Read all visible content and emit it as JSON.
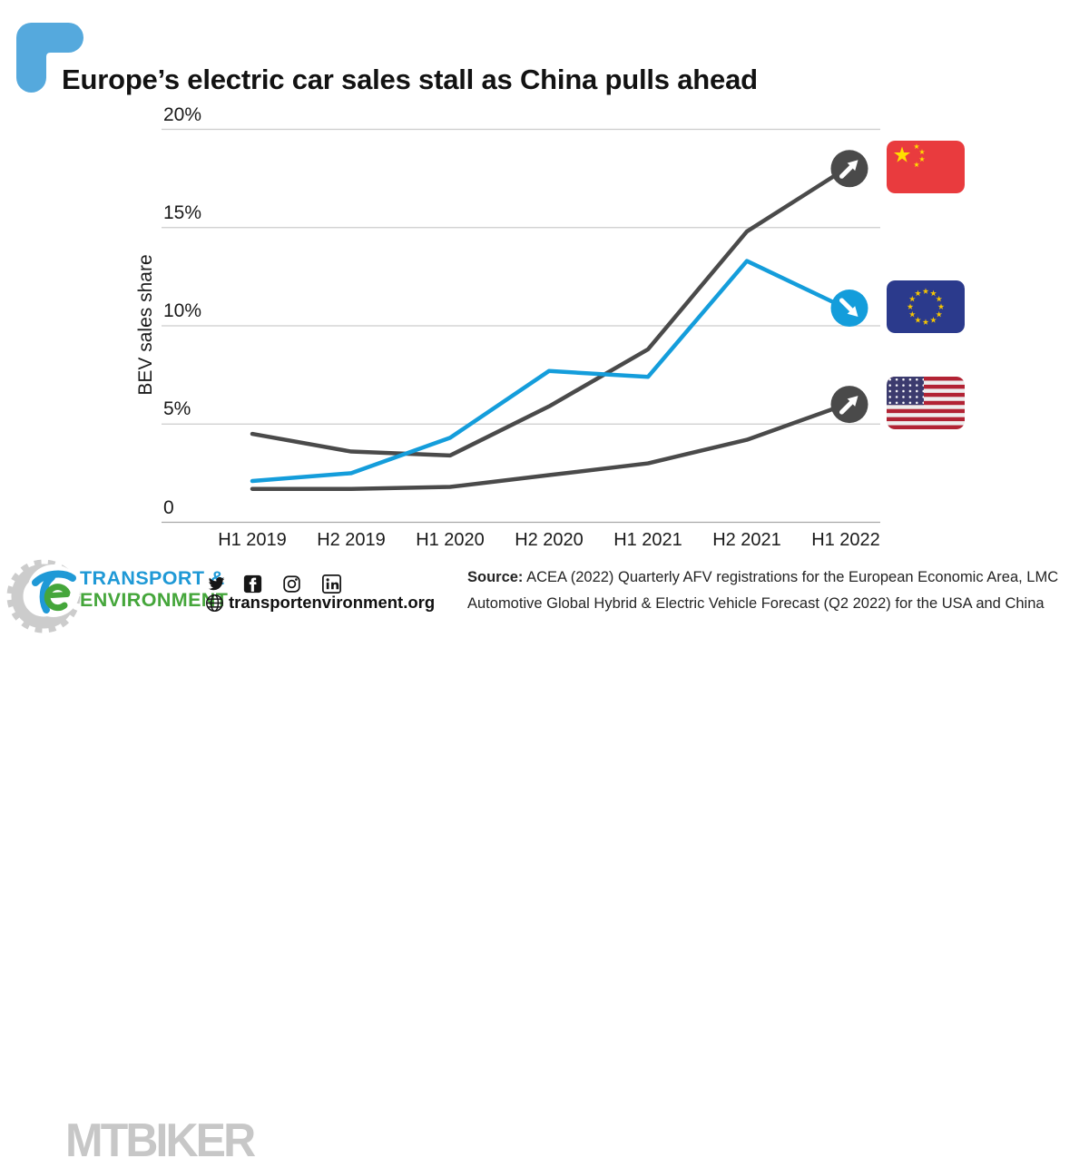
{
  "header": {
    "title": "Europe’s electric car sales stall as China pulls ahead",
    "accent_color": "#55A9DD"
  },
  "chart_data": {
    "type": "line",
    "title": "Europe’s electric car sales stall as China pulls ahead",
    "xlabel": "",
    "ylabel": "BEV sales share",
    "ylim": [
      0,
      20
    ],
    "grid": true,
    "legend_position": "flags at line ends (right)",
    "categories": [
      "H1 2019",
      "H2 2019",
      "H1 2020",
      "H2 2020",
      "H1 2021",
      "H2 2021",
      "H1 2022"
    ],
    "yticks": [
      {
        "value": 20,
        "label": "20%"
      },
      {
        "value": 15,
        "label": "15%"
      },
      {
        "value": 10,
        "label": "10%"
      },
      {
        "value": 5,
        "label": "5%"
      },
      {
        "value": 0,
        "label": "0"
      }
    ],
    "series": [
      {
        "name": "USA",
        "color": "#4A4A4A",
        "trend": "up",
        "flag": "flag-usa",
        "arrow_icon": "arrow-up-right-icon",
        "values": [
          1.7,
          1.7,
          1.8,
          2.4,
          3.0,
          4.2,
          6.0
        ]
      },
      {
        "name": "China",
        "color": "#4A4A4A",
        "trend": "up",
        "flag": "flag-china",
        "arrow_icon": "arrow-up-right-icon",
        "values": [
          4.5,
          3.6,
          3.4,
          5.9,
          8.8,
          14.8,
          18.0
        ]
      },
      {
        "name": "European Union",
        "color": "#149DDB",
        "trend": "down",
        "flag": "flag-eu",
        "arrow_icon": "arrow-down-right-icon",
        "values": [
          2.1,
          2.5,
          4.3,
          7.7,
          7.4,
          13.3,
          10.9
        ]
      }
    ]
  },
  "footer": {
    "logo": {
      "line1": "TRANSPORT &",
      "line2": "ENVIRONMENT",
      "blue": "#1F99D6",
      "green": "#45A63B"
    },
    "social_icons": [
      "twitter",
      "facebook",
      "instagram",
      "linkedin"
    ],
    "website": "transportenvironment.org",
    "source": {
      "label": "Source:",
      "line1_rest": " ACEA (2022) Quarterly AFV registrations for the European Economic Area, LMC",
      "line2": "Automotive Global Hybrid & Electric Vehicle Forecast (Q2 2022) for the USA and China"
    }
  },
  "watermark": {
    "text": "MTBIKER"
  }
}
